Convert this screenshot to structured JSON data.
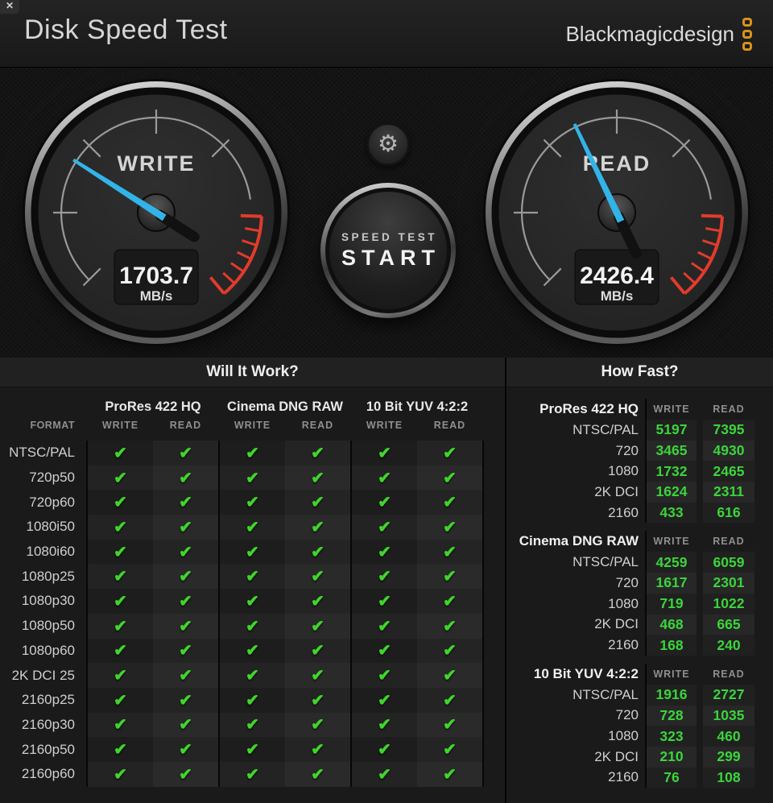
{
  "window": {
    "title": "Disk Speed Test",
    "close_icon_glyph": "✕"
  },
  "brand": {
    "name": "Blackmagicdesign",
    "accent_color": "#d8921d",
    "logo_squares": 3
  },
  "icons": {
    "check": "✔",
    "gear": "⚙"
  },
  "colors": {
    "check_green": "#3fd62b",
    "value_green": "#3bd43b",
    "needle_blue": "#32b4e8",
    "red_zone": "#e23b2c",
    "brand_orange": "#d8921d"
  },
  "controls": {
    "start_line1": "SPEED TEST",
    "start_line2": "START"
  },
  "gauges": {
    "write": {
      "label": "WRITE",
      "value": "1703.7",
      "unit": "MB/s",
      "needle_rotation_deg": -57.5
    },
    "read": {
      "label": "READ",
      "value": "2426.4",
      "unit": "MB/s",
      "needle_rotation_deg": -25.5
    }
  },
  "will_it_work": {
    "title": "Will It Work?",
    "format_header": "FORMAT",
    "groups": [
      "ProRes 422 HQ",
      "Cinema DNG RAW",
      "10 Bit YUV 4:2:2"
    ],
    "col_headers": [
      "WRITE",
      "READ"
    ],
    "rows": [
      {
        "format": "NTSC/PAL",
        "checks": [
          true,
          true,
          true,
          true,
          true,
          true
        ]
      },
      {
        "format": "720p50",
        "checks": [
          true,
          true,
          true,
          true,
          true,
          true
        ]
      },
      {
        "format": "720p60",
        "checks": [
          true,
          true,
          true,
          true,
          true,
          true
        ]
      },
      {
        "format": "1080i50",
        "checks": [
          true,
          true,
          true,
          true,
          true,
          true
        ]
      },
      {
        "format": "1080i60",
        "checks": [
          true,
          true,
          true,
          true,
          true,
          true
        ]
      },
      {
        "format": "1080p25",
        "checks": [
          true,
          true,
          true,
          true,
          true,
          true
        ]
      },
      {
        "format": "1080p30",
        "checks": [
          true,
          true,
          true,
          true,
          true,
          true
        ]
      },
      {
        "format": "1080p50",
        "checks": [
          true,
          true,
          true,
          true,
          true,
          true
        ]
      },
      {
        "format": "1080p60",
        "checks": [
          true,
          true,
          true,
          true,
          true,
          true
        ]
      },
      {
        "format": "2K DCI 25",
        "checks": [
          true,
          true,
          true,
          true,
          true,
          true
        ]
      },
      {
        "format": "2160p25",
        "checks": [
          true,
          true,
          true,
          true,
          true,
          true
        ]
      },
      {
        "format": "2160p30",
        "checks": [
          true,
          true,
          true,
          true,
          true,
          true
        ]
      },
      {
        "format": "2160p50",
        "checks": [
          true,
          true,
          true,
          true,
          true,
          true
        ]
      },
      {
        "format": "2160p60",
        "checks": [
          true,
          true,
          true,
          true,
          true,
          true
        ]
      }
    ]
  },
  "how_fast": {
    "title": "How Fast?",
    "col_headers": [
      "WRITE",
      "READ"
    ],
    "sections": [
      {
        "name": "ProRes 422 HQ",
        "rows": [
          {
            "format": "NTSC/PAL",
            "write": "5197",
            "read": "7395"
          },
          {
            "format": "720",
            "write": "3465",
            "read": "4930"
          },
          {
            "format": "1080",
            "write": "1732",
            "read": "2465"
          },
          {
            "format": "2K DCI",
            "write": "1624",
            "read": "2311"
          },
          {
            "format": "2160",
            "write": "433",
            "read": "616"
          }
        ]
      },
      {
        "name": "Cinema DNG RAW",
        "rows": [
          {
            "format": "NTSC/PAL",
            "write": "4259",
            "read": "6059"
          },
          {
            "format": "720",
            "write": "1617",
            "read": "2301"
          },
          {
            "format": "1080",
            "write": "719",
            "read": "1022"
          },
          {
            "format": "2K DCI",
            "write": "468",
            "read": "665"
          },
          {
            "format": "2160",
            "write": "168",
            "read": "240"
          }
        ]
      },
      {
        "name": "10 Bit YUV 4:2:2",
        "rows": [
          {
            "format": "NTSC/PAL",
            "write": "1916",
            "read": "2727"
          },
          {
            "format": "720",
            "write": "728",
            "read": "1035"
          },
          {
            "format": "1080",
            "write": "323",
            "read": "460"
          },
          {
            "format": "2K DCI",
            "write": "210",
            "read": "299"
          },
          {
            "format": "2160",
            "write": "76",
            "read": "108"
          }
        ]
      }
    ]
  }
}
